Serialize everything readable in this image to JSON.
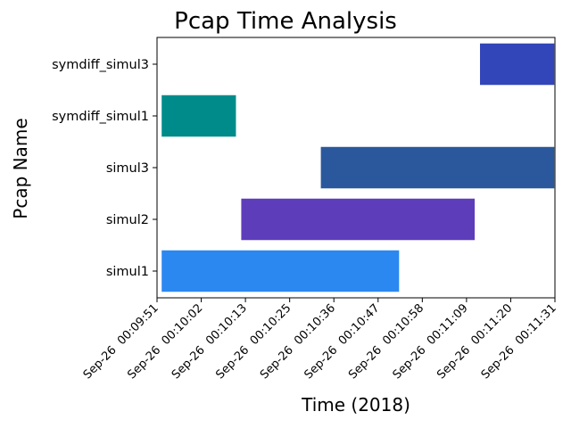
{
  "chart_data": {
    "type": "gantt",
    "title": "Pcap Time Analysis",
    "xlabel": "Time (2018)",
    "ylabel": "Pcap Name",
    "categories": [
      "simul1",
      "simul2",
      "simul3",
      "symdiff_simul1",
      "symdiff_simul3"
    ],
    "bars": [
      {
        "name": "simul1",
        "start": "Sep-26 00:09:52",
        "end": "Sep-26 00:10:52",
        "color": "#2b88f0"
      },
      {
        "name": "simul2",
        "start": "Sep-26 00:10:12",
        "end": "Sep-26 00:11:11",
        "color": "#5e3dbb"
      },
      {
        "name": "simul3",
        "start": "Sep-26 00:10:32",
        "end": "Sep-26 00:11:31",
        "color": "#2b589c"
      },
      {
        "name": "symdiff_simul1",
        "start": "Sep-26 00:09:52",
        "end": "Sep-26 00:10:11",
        "color": "#008b8b"
      },
      {
        "name": "symdiff_simul3",
        "start": "Sep-26 00:11:12",
        "end": "Sep-26 00:11:31",
        "color": "#3245b9"
      }
    ],
    "xticks": [
      "Sep-26  00:09:51",
      "Sep-26  00:10:02",
      "Sep-26  00:10:13",
      "Sep-26  00:10:25",
      "Sep-26  00:10:36",
      "Sep-26  00:10:47",
      "Sep-26  00:10:58",
      "Sep-26  00:11:09",
      "Sep-26  00:11:20",
      "Sep-26  00:11:31"
    ],
    "xlim": [
      "Sep-26 00:09:51",
      "Sep-26 00:11:31"
    ],
    "grid": false,
    "legend": "none"
  }
}
